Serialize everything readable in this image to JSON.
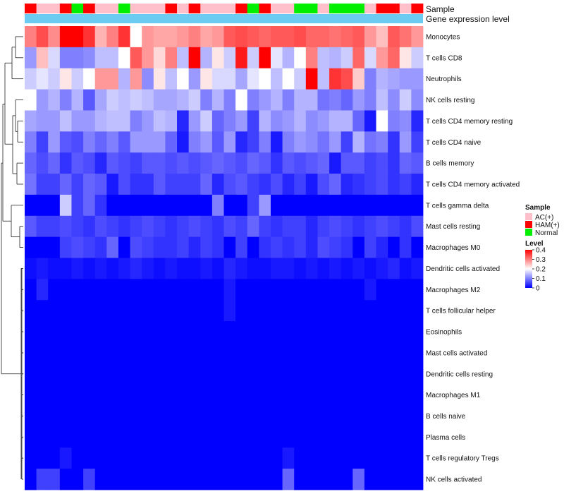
{
  "chart_data": {
    "type": "heatmap",
    "title": "",
    "annotation_rows": [
      "Sample",
      "Gene expression level"
    ],
    "columns": 34,
    "sample_groups": [
      "HAM(+)",
      "AC(+)",
      "AC(+)",
      "HAM(+)",
      "Normal",
      "HAM(+)",
      "AC(+)",
      "AC(+)",
      "Normal",
      "AC(+)",
      "AC(+)",
      "AC(+)",
      "HAM(+)",
      "AC(+)",
      "HAM(+)",
      "AC(+)",
      "AC(+)",
      "AC(+)",
      "HAM(+)",
      "Normal",
      "HAM(+)",
      "AC(+)",
      "AC(+)",
      "Normal",
      "Normal",
      "AC(+)",
      "Normal",
      "Normal",
      "Normal",
      "AC(+)",
      "HAM(+)",
      "HAM(+)",
      "AC(+)",
      "HAM(+)"
    ],
    "rows": [
      {
        "name": "Monocytes",
        "values": [
          0.3,
          0.34,
          0.29,
          0.4,
          0.4,
          0.36,
          0.26,
          0.3,
          0.36,
          0.2,
          0.28,
          0.27,
          0.27,
          0.28,
          0.3,
          0.27,
          0.28,
          0.33,
          0.34,
          0.33,
          0.32,
          0.33,
          0.33,
          0.34,
          0.32,
          0.32,
          0.31,
          0.32,
          0.33,
          0.28,
          0.25,
          0.33,
          0.31,
          0.28
        ]
      },
      {
        "name": "T cells CD8",
        "values": [
          0.12,
          0.25,
          0.17,
          0.1,
          0.1,
          0.11,
          0.15,
          0.15,
          0.2,
          0.33,
          0.28,
          0.23,
          0.3,
          0.15,
          0.4,
          0.14,
          0.22,
          0.16,
          0.38,
          0.16,
          0.4,
          0.18,
          0.14,
          0.2,
          0.3,
          0.15,
          0.14,
          0.16,
          0.32,
          0.17,
          0.28,
          0.32,
          0.22,
          0.16
        ]
      },
      {
        "name": "Neutrophils",
        "values": [
          0.16,
          0.18,
          0.16,
          0.22,
          0.16,
          0.2,
          0.28,
          0.28,
          0.14,
          0.28,
          0.11,
          0.22,
          0.15,
          0.2,
          0.12,
          0.22,
          0.17,
          0.17,
          0.13,
          0.18,
          0.2,
          0.15,
          0.2,
          0.16,
          0.4,
          0.15,
          0.36,
          0.34,
          0.24,
          0.1,
          0.14,
          0.13,
          0.12,
          0.12
        ]
      },
      {
        "name": "NK cells resting",
        "values": [
          0.2,
          0.12,
          0.14,
          0.1,
          0.14,
          0.07,
          0.13,
          0.16,
          0.15,
          0.16,
          0.15,
          0.13,
          0.13,
          0.14,
          0.16,
          0.1,
          0.14,
          0.1,
          0.2,
          0.1,
          0.12,
          0.14,
          0.1,
          0.14,
          0.14,
          0.09,
          0.1,
          0.08,
          0.12,
          0.1,
          0.15,
          0.11,
          0.16,
          0.11
        ]
      },
      {
        "name": "T cells CD4 memory resting",
        "values": [
          0.13,
          0.12,
          0.12,
          0.15,
          0.12,
          0.12,
          0.14,
          0.15,
          0.15,
          0.1,
          0.12,
          0.15,
          0.14,
          0.03,
          0.12,
          0.16,
          0.08,
          0.1,
          0.12,
          0.05,
          0.14,
          0.11,
          0.12,
          0.14,
          0.11,
          0.12,
          0.14,
          0.14,
          0.08,
          0.02,
          0.2,
          0.1,
          0.11,
          0.03
        ]
      },
      {
        "name": "T cells CD4 naive",
        "values": [
          0.1,
          0.05,
          0.12,
          0.07,
          0.06,
          0.1,
          0.08,
          0.1,
          0.07,
          0.12,
          0.12,
          0.12,
          0.08,
          0.02,
          0.1,
          0.12,
          0.07,
          0.12,
          0.03,
          0.05,
          0.1,
          0.02,
          0.1,
          0.12,
          0.11,
          0.09,
          0.12,
          0.05,
          0.14,
          0.09,
          0.1,
          0.04,
          0.12,
          0.05
        ]
      },
      {
        "name": "B cells memory",
        "values": [
          0.08,
          0.06,
          0.08,
          0.04,
          0.07,
          0.06,
          0.03,
          0.07,
          0.06,
          0.05,
          0.07,
          0.07,
          0.06,
          0.07,
          0.06,
          0.07,
          0.08,
          0.07,
          0.06,
          0.08,
          0.07,
          0.04,
          0.07,
          0.06,
          0.07,
          0.08,
          0.02,
          0.07,
          0.07,
          0.05,
          0.06,
          0.04,
          0.08,
          0.07
        ]
      },
      {
        "name": "T cells CD4 memory activated",
        "values": [
          0.09,
          0.05,
          0.05,
          0.08,
          0.05,
          0.08,
          0.07,
          0.02,
          0.06,
          0.04,
          0.04,
          0.07,
          0.05,
          0.05,
          0.05,
          0.08,
          0.03,
          0.06,
          0.07,
          0.05,
          0.04,
          0.06,
          0.03,
          0.05,
          0.02,
          0.06,
          0.08,
          0.03,
          0.04,
          0.05,
          0.06,
          0.04,
          0.05,
          0.03
        ]
      },
      {
        "name": "T cells gamma delta",
        "values": [
          0.0,
          0.0,
          0.0,
          0.16,
          0.05,
          0.08,
          0.04,
          0.0,
          0.0,
          0.0,
          0.0,
          0.0,
          0.0,
          0.0,
          0.0,
          0.0,
          0.1,
          0.0,
          0.0,
          0.05,
          0.12,
          0.0,
          0.0,
          0.0,
          0.0,
          0.0,
          0.0,
          0.0,
          0.0,
          0.0,
          0.0,
          0.0,
          0.0,
          0.0
        ]
      },
      {
        "name": "Mast cells resting",
        "values": [
          0.07,
          0.05,
          0.05,
          0.06,
          0.05,
          0.04,
          0.06,
          0.05,
          0.04,
          0.05,
          0.06,
          0.05,
          0.04,
          0.05,
          0.06,
          0.05,
          0.04,
          0.06,
          0.05,
          0.08,
          0.05,
          0.04,
          0.05,
          0.05,
          0.03,
          0.05,
          0.06,
          0.05,
          0.04,
          0.05,
          0.06,
          0.05,
          0.04,
          0.06
        ]
      },
      {
        "name": "Macrophages M0",
        "values": [
          0.0,
          0.0,
          0.0,
          0.05,
          0.06,
          0.05,
          0.04,
          0.08,
          0.0,
          0.06,
          0.05,
          0.04,
          0.04,
          0.05,
          0.03,
          0.05,
          0.04,
          0.0,
          0.05,
          0.0,
          0.04,
          0.05,
          0.04,
          0.05,
          0.03,
          0.06,
          0.05,
          0.04,
          0.0,
          0.05,
          0.03,
          0.0,
          0.04,
          0.0
        ]
      },
      {
        "name": "Dendritic cells activated",
        "values": [
          0.01,
          0.02,
          0.01,
          0.01,
          0.02,
          0.01,
          0.02,
          0.01,
          0.02,
          0.03,
          0.02,
          0.01,
          0.02,
          0.01,
          0.01,
          0.02,
          0.01,
          0.03,
          0.02,
          0.01,
          0.01,
          0.02,
          0.02,
          0.01,
          0.02,
          0.01,
          0.02,
          0.01,
          0.02,
          0.01,
          0.02,
          0.03,
          0.01,
          0.02
        ]
      },
      {
        "name": "Macrophages M2",
        "values": [
          0.0,
          0.03,
          0.0,
          0.0,
          0.0,
          0.0,
          0.0,
          0.0,
          0.0,
          0.0,
          0.0,
          0.0,
          0.0,
          0.0,
          0.0,
          0.0,
          0.0,
          0.02,
          0.0,
          0.0,
          0.0,
          0.0,
          0.0,
          0.0,
          0.0,
          0.0,
          0.0,
          0.0,
          0.0,
          0.02,
          0.0,
          0.0,
          0.0,
          0.0
        ]
      },
      {
        "name": "T cells follicular helper",
        "values": [
          0.0,
          0.0,
          0.0,
          0.0,
          0.0,
          0.0,
          0.0,
          0.0,
          0.0,
          0.0,
          0.0,
          0.0,
          0.0,
          0.0,
          0.0,
          0.0,
          0.0,
          0.02,
          0.0,
          0.0,
          0.0,
          0.0,
          0.0,
          0.0,
          0.0,
          0.0,
          0.0,
          0.0,
          0.0,
          0.0,
          0.0,
          0.0,
          0.0,
          0.0
        ]
      },
      {
        "name": "Eosinophils",
        "values": [
          0.0,
          0.0,
          0.0,
          0.0,
          0.0,
          0.0,
          0.0,
          0.0,
          0.0,
          0.0,
          0.0,
          0.0,
          0.0,
          0.0,
          0.0,
          0.0,
          0.0,
          0.0,
          0.0,
          0.0,
          0.0,
          0.0,
          0.0,
          0.0,
          0.0,
          0.0,
          0.0,
          0.0,
          0.0,
          0.0,
          0.0,
          0.0,
          0.0,
          0.0
        ]
      },
      {
        "name": "Mast cells activated",
        "values": [
          0.0,
          0.0,
          0.0,
          0.0,
          0.0,
          0.0,
          0.0,
          0.0,
          0.0,
          0.0,
          0.0,
          0.0,
          0.0,
          0.0,
          0.0,
          0.0,
          0.0,
          0.0,
          0.0,
          0.0,
          0.0,
          0.0,
          0.0,
          0.0,
          0.0,
          0.0,
          0.0,
          0.0,
          0.0,
          0.0,
          0.0,
          0.0,
          0.0,
          0.0
        ]
      },
      {
        "name": "Dendritic cells resting",
        "values": [
          0.0,
          0.0,
          0.0,
          0.0,
          0.0,
          0.0,
          0.0,
          0.0,
          0.0,
          0.0,
          0.0,
          0.0,
          0.0,
          0.0,
          0.0,
          0.0,
          0.0,
          0.0,
          0.0,
          0.0,
          0.0,
          0.0,
          0.0,
          0.0,
          0.0,
          0.0,
          0.0,
          0.0,
          0.0,
          0.0,
          0.0,
          0.0,
          0.0,
          0.0
        ]
      },
      {
        "name": "Macrophages M1",
        "values": [
          0.0,
          0.0,
          0.0,
          0.0,
          0.0,
          0.0,
          0.0,
          0.0,
          0.0,
          0.0,
          0.0,
          0.0,
          0.0,
          0.0,
          0.0,
          0.0,
          0.0,
          0.0,
          0.0,
          0.0,
          0.0,
          0.0,
          0.0,
          0.0,
          0.0,
          0.0,
          0.0,
          0.0,
          0.0,
          0.0,
          0.0,
          0.0,
          0.0,
          0.0
        ]
      },
      {
        "name": "B cells naive",
        "values": [
          0.0,
          0.0,
          0.0,
          0.0,
          0.0,
          0.0,
          0.0,
          0.0,
          0.0,
          0.0,
          0.0,
          0.0,
          0.0,
          0.0,
          0.0,
          0.0,
          0.0,
          0.0,
          0.0,
          0.0,
          0.0,
          0.0,
          0.0,
          0.0,
          0.0,
          0.0,
          0.0,
          0.0,
          0.0,
          0.0,
          0.0,
          0.0,
          0.0,
          0.0
        ]
      },
      {
        "name": "Plasma cells",
        "values": [
          0.0,
          0.0,
          0.0,
          0.0,
          0.0,
          0.0,
          0.0,
          0.0,
          0.0,
          0.0,
          0.0,
          0.0,
          0.0,
          0.0,
          0.0,
          0.0,
          0.0,
          0.0,
          0.0,
          0.0,
          0.0,
          0.0,
          0.0,
          0.0,
          0.0,
          0.0,
          0.0,
          0.0,
          0.0,
          0.0,
          0.0,
          0.0,
          0.0,
          0.0
        ]
      },
      {
        "name": "T cells regulatory  Tregs",
        "values": [
          0.0,
          0.0,
          0.0,
          0.02,
          0.0,
          0.0,
          0.0,
          0.0,
          0.0,
          0.0,
          0.0,
          0.0,
          0.0,
          0.0,
          0.0,
          0.0,
          0.0,
          0.0,
          0.0,
          0.0,
          0.0,
          0.0,
          0.02,
          0.0,
          0.0,
          0.0,
          0.0,
          0.0,
          0.0,
          0.0,
          0.0,
          0.0,
          0.0,
          0.0
        ]
      },
      {
        "name": "NK cells activated",
        "values": [
          0.0,
          0.05,
          0.05,
          0.0,
          0.0,
          0.05,
          0.0,
          0.0,
          0.0,
          0.0,
          0.0,
          0.0,
          0.0,
          0.0,
          0.0,
          0.0,
          0.0,
          0.0,
          0.0,
          0.0,
          0.0,
          0.0,
          0.08,
          0.0,
          0.0,
          0.0,
          0.0,
          0.0,
          0.08,
          0.0,
          0.0,
          0.0,
          0.0,
          0.0
        ]
      }
    ],
    "color_scale": {
      "min": 0,
      "max": 0.4,
      "colors": [
        "#0000ff",
        "#ffffff",
        "#ff0000"
      ],
      "mid": 0.2
    },
    "legend_sample": {
      "title": "Sample",
      "items": [
        {
          "label": "AC(+)",
          "color": "#ffc0cb"
        },
        {
          "label": "HAM(+)",
          "color": "#ff0000"
        },
        {
          "label": "Normal",
          "color": "#00ee00"
        }
      ]
    },
    "legend_level": {
      "title": "Level",
      "ticks": [
        "0.4",
        "0.3",
        "0.2",
        "0.1",
        "0"
      ],
      "tick_values": [
        0.4,
        0.3,
        0.2,
        0.1,
        0
      ]
    },
    "expression_level_color": "#6bcbf0"
  }
}
